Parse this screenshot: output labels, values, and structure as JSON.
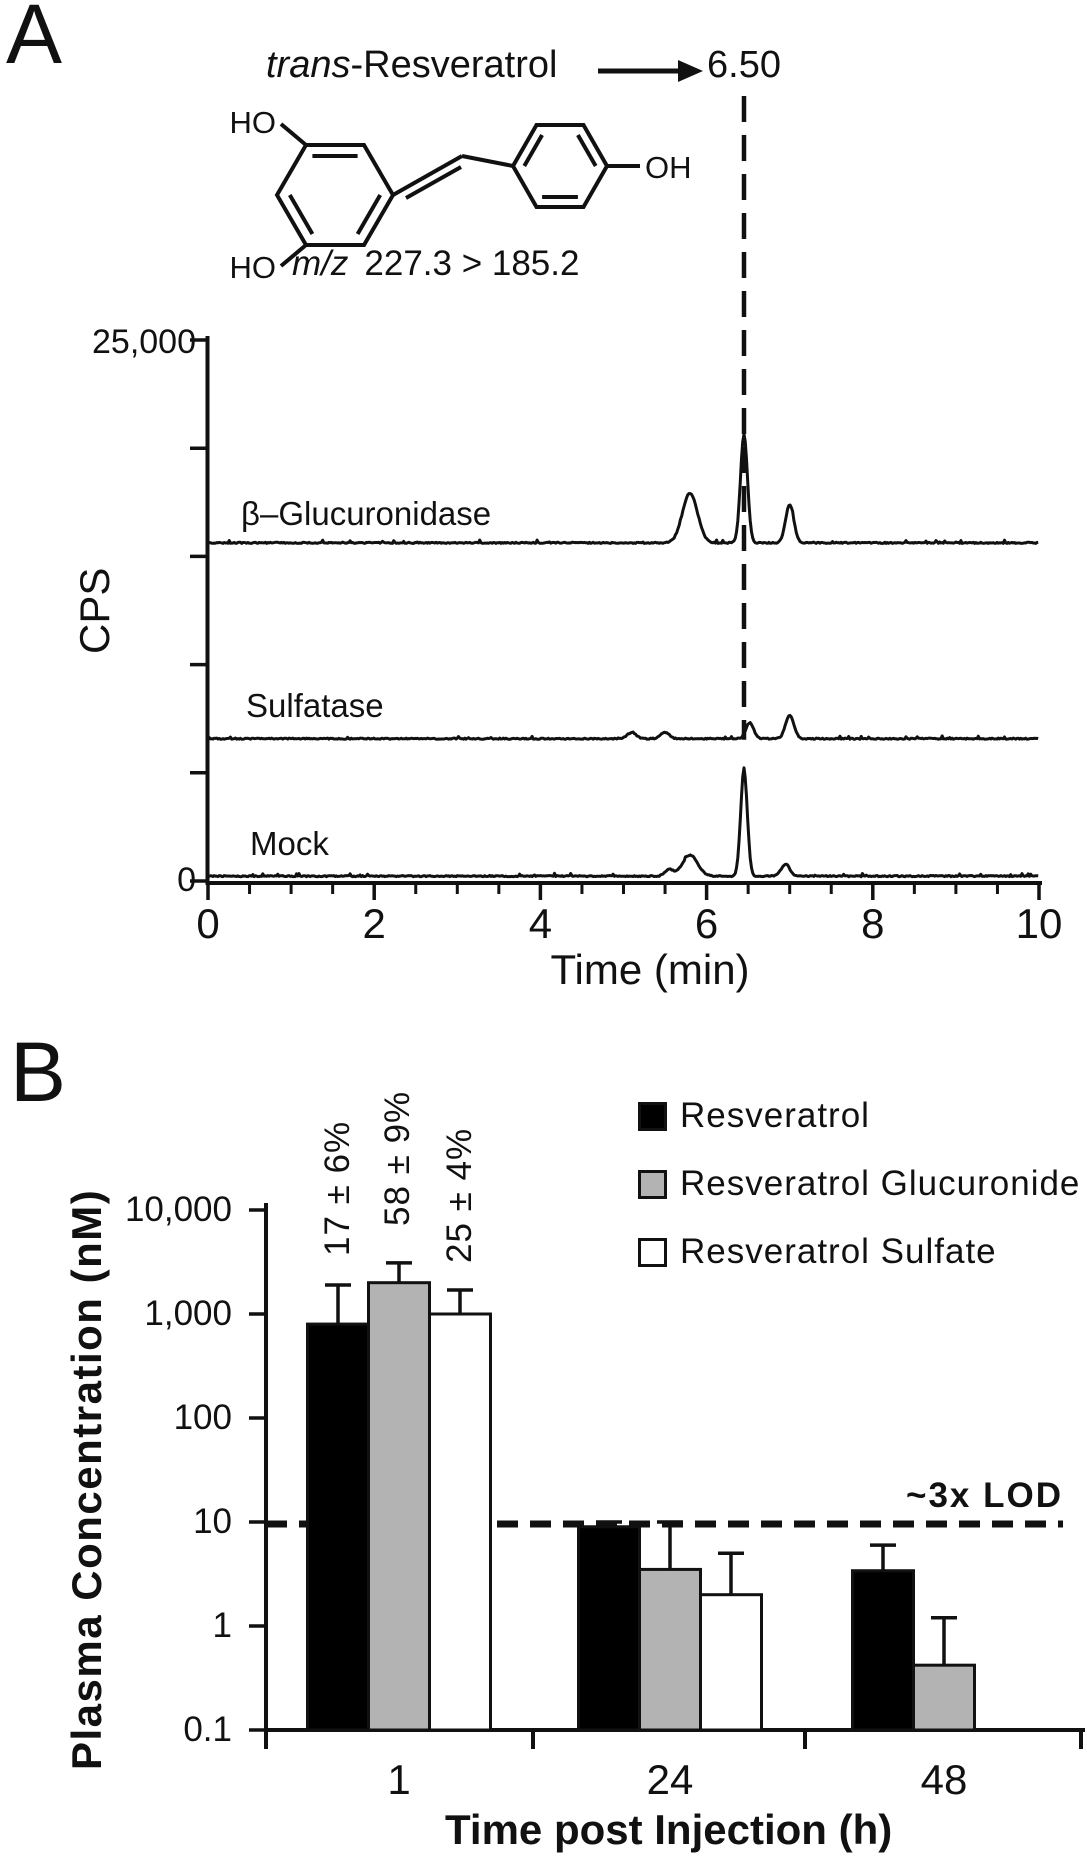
{
  "colors": {
    "ink": "#111111",
    "gray_fill": "#b3b3b3",
    "white_fill": "#ffffff",
    "black_fill": "#000000"
  },
  "figure": {
    "panelA": {
      "label": "A"
    },
    "panelB": {
      "label": "B"
    }
  },
  "chart_data": [
    {
      "type": "line",
      "panel": "A",
      "compound_italic": "trans",
      "compound_rest": "-Resveratrol",
      "retention_time_label": "6.50",
      "mz_italic": "m/z",
      "mz_transition": "227.3 > 185.2",
      "structure_atoms": {
        "top": "HO",
        "bottom": "HO",
        "right": "OH"
      },
      "ylabel": "CPS",
      "ylim": [
        0,
        25000
      ],
      "ytick_labels": [
        "25,000",
        "0"
      ],
      "xlabel": "Time (min)",
      "xlim": [
        0,
        10
      ],
      "xticks": [
        0,
        2,
        4,
        6,
        8,
        10
      ],
      "minor_tick_step": 0.5,
      "marker_rt": 6.45,
      "traces": [
        {
          "name": "β–Glucuronidase",
          "baseline_cps": 15600,
          "peaks": [
            {
              "rt": 5.8,
              "cps": 2300,
              "w": 0.09
            },
            {
              "rt": 6.45,
              "cps": 5000,
              "w": 0.042
            },
            {
              "rt": 7.0,
              "cps": 1750,
              "w": 0.05
            }
          ]
        },
        {
          "name": "Sulfatase",
          "baseline_cps": 6550,
          "peaks": [
            {
              "rt": 5.1,
              "cps": 300,
              "w": 0.05
            },
            {
              "rt": 5.5,
              "cps": 300,
              "w": 0.05
            },
            {
              "rt": 6.52,
              "cps": 740,
              "w": 0.045
            },
            {
              "rt": 7.0,
              "cps": 1100,
              "w": 0.05
            }
          ]
        },
        {
          "name": "Mock",
          "baseline_cps": 200,
          "peaks": [
            {
              "rt": 5.55,
              "cps": 300,
              "w": 0.05
            },
            {
              "rt": 5.8,
              "cps": 970,
              "w": 0.09
            },
            {
              "rt": 6.45,
              "cps": 4900,
              "w": 0.04
            },
            {
              "rt": 6.95,
              "cps": 560,
              "w": 0.05
            }
          ]
        }
      ]
    },
    {
      "type": "bar",
      "panel": "B",
      "ylabel": "Plasma Concentration (nM)",
      "xlabel": "Time post Injection (h)",
      "yscale": "log",
      "ylim": [
        0.1,
        10000
      ],
      "ytick_values": [
        10000,
        1000,
        100,
        10,
        1,
        0.1
      ],
      "ytick_labels": [
        "10,000",
        "1,000",
        "100",
        "10",
        "1",
        "0.1"
      ],
      "categories": [
        "1",
        "24",
        "48"
      ],
      "series": [
        {
          "name": "Resveratrol",
          "fill": "#000000",
          "values": [
            800,
            9,
            3.4
          ],
          "err_top": [
            1900,
            10,
            6
          ]
        },
        {
          "name": "Resveratrol Glucuronide",
          "fill": "#b3b3b3",
          "values": [
            2000,
            3.5,
            0.42
          ],
          "err_top": [
            3100,
            10,
            1.2
          ]
        },
        {
          "name": "Resveratrol Sulfate",
          "fill": "#ffffff",
          "values": [
            1000,
            2.0,
            null
          ],
          "err_top": [
            1700,
            5,
            null
          ]
        }
      ],
      "bar_annotations": [
        "17 ± 6%",
        "58 ± 9%",
        "25 ± 4%"
      ],
      "lod_line": {
        "value": 10,
        "label": "~3x LOD",
        "style": "dashed"
      },
      "legend_position": "upper right"
    }
  ]
}
